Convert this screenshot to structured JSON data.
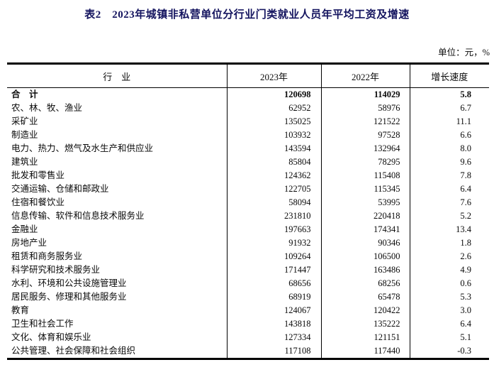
{
  "page": {
    "title": "表2　2023年城镇非私营单位分行业门类就业人员年平均工资及增速",
    "unit_note": "单位：元，%"
  },
  "table": {
    "columns": [
      "行　业",
      "2023年",
      "2022年",
      "增长速度"
    ],
    "rows": [
      {
        "industry": "合　计",
        "y2023": "120698",
        "y2022": "114029",
        "growth": "5.8",
        "bold": true
      },
      {
        "industry": "农、林、牧、渔业",
        "y2023": "62952",
        "y2022": "58976",
        "growth": "6.7",
        "bold": false
      },
      {
        "industry": "采矿业",
        "y2023": "135025",
        "y2022": "121522",
        "growth": "11.1",
        "bold": false
      },
      {
        "industry": "制造业",
        "y2023": "103932",
        "y2022": "97528",
        "growth": "6.6",
        "bold": false
      },
      {
        "industry": "电力、热力、燃气及水生产和供应业",
        "y2023": "143594",
        "y2022": "132964",
        "growth": "8.0",
        "bold": false
      },
      {
        "industry": "建筑业",
        "y2023": "85804",
        "y2022": "78295",
        "growth": "9.6",
        "bold": false
      },
      {
        "industry": "批发和零售业",
        "y2023": "124362",
        "y2022": "115408",
        "growth": "7.8",
        "bold": false
      },
      {
        "industry": "交通运输、仓储和邮政业",
        "y2023": "122705",
        "y2022": "115345",
        "growth": "6.4",
        "bold": false
      },
      {
        "industry": "住宿和餐饮业",
        "y2023": "58094",
        "y2022": "53995",
        "growth": "7.6",
        "bold": false
      },
      {
        "industry": "信息传输、软件和信息技术服务业",
        "y2023": "231810",
        "y2022": "220418",
        "growth": "5.2",
        "bold": false
      },
      {
        "industry": "金融业",
        "y2023": "197663",
        "y2022": "174341",
        "growth": "13.4",
        "bold": false
      },
      {
        "industry": "房地产业",
        "y2023": "91932",
        "y2022": "90346",
        "growth": "1.8",
        "bold": false
      },
      {
        "industry": "租赁和商务服务业",
        "y2023": "109264",
        "y2022": "106500",
        "growth": "2.6",
        "bold": false
      },
      {
        "industry": "科学研究和技术服务业",
        "y2023": "171447",
        "y2022": "163486",
        "growth": "4.9",
        "bold": false
      },
      {
        "industry": "水利、环境和公共设施管理业",
        "y2023": "68656",
        "y2022": "68256",
        "growth": "0.6",
        "bold": false
      },
      {
        "industry": "居民服务、修理和其他服务业",
        "y2023": "68919",
        "y2022": "65478",
        "growth": "5.3",
        "bold": false
      },
      {
        "industry": "教育",
        "y2023": "124067",
        "y2022": "120422",
        "growth": "3.0",
        "bold": false
      },
      {
        "industry": "卫生和社会工作",
        "y2023": "143818",
        "y2022": "135222",
        "growth": "6.4",
        "bold": false
      },
      {
        "industry": "文化、体育和娱乐业",
        "y2023": "127334",
        "y2022": "121151",
        "growth": "5.1",
        "bold": false
      },
      {
        "industry": "公共管理、社会保障和社会组织",
        "y2023": "117108",
        "y2022": "117440",
        "growth": "-0.3",
        "bold": false
      }
    ]
  }
}
